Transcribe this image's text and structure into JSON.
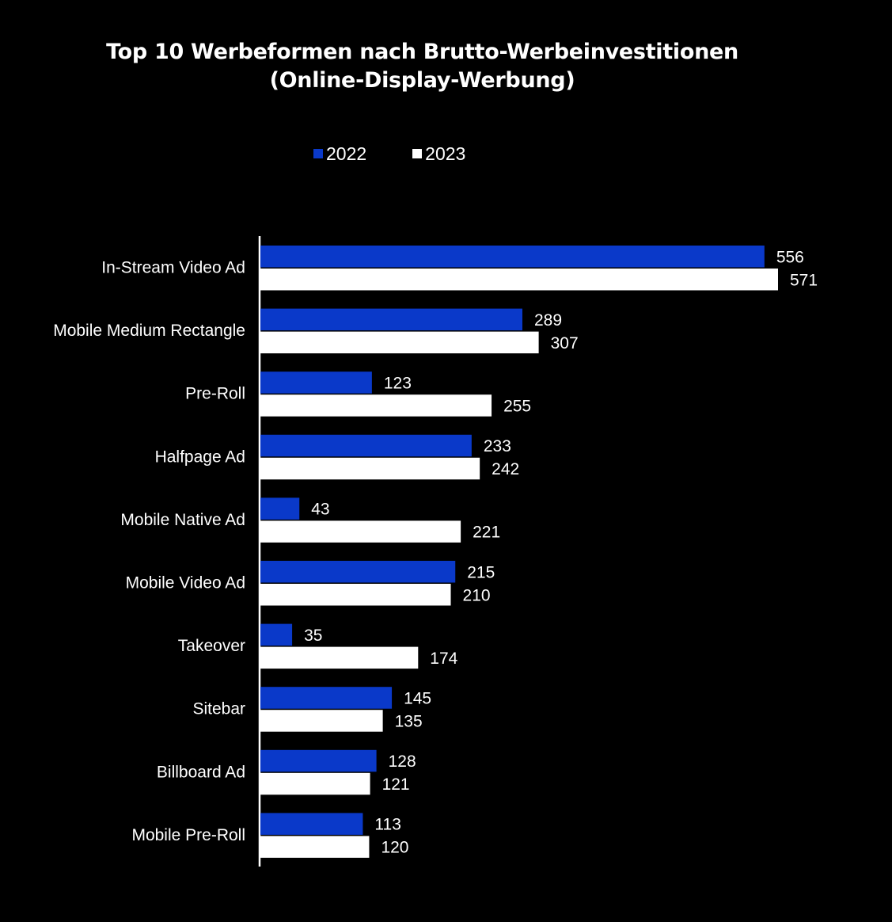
{
  "colors": {
    "background": "#000000",
    "series_2022": "#0a39c9",
    "series_2023": "#ffffff",
    "text": "#ffffff"
  },
  "chart_data": {
    "type": "bar",
    "orientation": "horizontal",
    "title": "Top 10 Werbeformen nach Brutto-Werbeinvestitionen",
    "subtitle": "(Online-Display-Werbung)",
    "xlabel": "",
    "ylabel": "",
    "grid": false,
    "legend_position": "top-center",
    "xlim": [
      0,
      571
    ],
    "categories": [
      "In-Stream Video Ad",
      "Mobile Medium Rectangle",
      "Pre-Roll",
      "Halfpage Ad",
      "Mobile Native Ad",
      "Mobile Video Ad",
      "Takeover",
      "Sitebar",
      "Billboard Ad",
      "Mobile Pre-Roll"
    ],
    "series": [
      {
        "name": "2022",
        "values": [
          556,
          289,
          123,
          233,
          43,
          215,
          35,
          145,
          128,
          113
        ]
      },
      {
        "name": "2023",
        "values": [
          571,
          307,
          255,
          242,
          221,
          210,
          174,
          135,
          121,
          120
        ]
      }
    ]
  }
}
